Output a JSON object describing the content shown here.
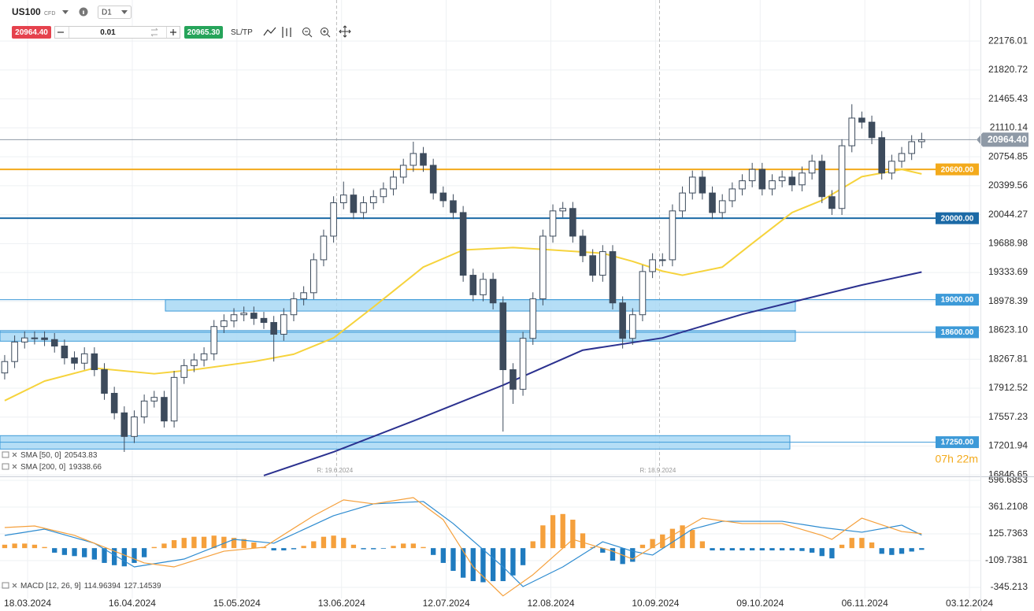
{
  "toolbar": {
    "symbol": "US100",
    "instrument_type": "CFD",
    "timeframe": "D1",
    "sell_price": "20964.40",
    "volume": "0.01",
    "buy_price": "20965.30",
    "sl_tp": "SL/TP"
  },
  "chart_data": [
    {
      "type": "candlestick",
      "x": [
        0,
        1,
        2,
        3,
        4,
        5,
        6,
        7,
        8,
        9,
        10,
        11,
        12,
        13,
        14,
        15,
        16,
        17,
        18,
        19,
        20,
        21,
        22,
        23,
        24,
        25,
        26,
        27,
        28,
        29,
        30,
        31,
        32,
        33,
        34,
        35,
        36,
        37,
        38,
        39,
        40,
        41,
        42,
        43,
        44,
        45,
        46,
        47,
        48,
        49,
        50,
        51,
        52,
        53,
        54,
        55,
        56,
        57,
        58,
        59,
        60,
        61,
        62,
        63,
        64,
        65,
        66,
        67,
        68,
        69,
        70,
        71,
        72,
        73,
        74,
        75,
        76,
        77,
        78,
        79,
        80,
        81,
        82,
        83,
        84,
        85,
        86,
        87,
        88,
        89,
        90,
        91,
        92
      ],
      "open": [
        18100,
        18240,
        18480,
        18530,
        18530,
        18510,
        18430,
        18285,
        18220,
        18335,
        18140,
        17850,
        17610,
        17320,
        17560,
        17755,
        17800,
        17510,
        18045,
        18190,
        18260,
        18335,
        18670,
        18740,
        18815,
        18835,
        18770,
        18720,
        18575,
        18815,
        19010,
        19085,
        19490,
        19780,
        20190,
        20285,
        20070,
        20190,
        20265,
        20360,
        20505,
        20650,
        20795,
        20650,
        20310,
        20215,
        20070,
        19300,
        19060,
        19250,
        18960,
        18140,
        17900,
        18525,
        19010,
        19780,
        20090,
        20120,
        19780,
        19540,
        19300,
        19590,
        18960,
        18525,
        18815,
        19345,
        19490,
        19490,
        20090,
        20310,
        20505,
        20310,
        20070,
        20215,
        20360,
        20460,
        20600,
        20360,
        20460,
        20505,
        20410,
        20555,
        20700,
        20265,
        20120,
        20890,
        21230,
        21180,
        20990,
        20555,
        20700,
        20795,
        20940
      ],
      "high": [
        18320,
        18560,
        18610,
        18610,
        18610,
        18590,
        18510,
        18365,
        18415,
        18415,
        18220,
        17930,
        17690,
        17640,
        17835,
        17880,
        17880,
        18125,
        18270,
        18340,
        18415,
        18750,
        18820,
        18895,
        18915,
        18915,
        18850,
        18800,
        18895,
        19090,
        19165,
        19570,
        19860,
        20270,
        20450,
        20365,
        20270,
        20345,
        20440,
        20585,
        20730,
        20940,
        20875,
        20730,
        20390,
        20295,
        20150,
        19380,
        19330,
        19330,
        19040,
        18220,
        18605,
        19090,
        19860,
        20170,
        20200,
        20200,
        19860,
        19620,
        19670,
        19670,
        19040,
        18895,
        19425,
        19570,
        19570,
        20170,
        20390,
        20585,
        20585,
        20390,
        20295,
        20440,
        20540,
        20680,
        20680,
        20540,
        20585,
        20585,
        20635,
        20780,
        20780,
        20345,
        20970,
        21400,
        21310,
        21260,
        21070,
        20780,
        20875,
        21020,
        21050
      ],
      "low": [
        18020,
        18160,
        18400,
        18450,
        18430,
        18350,
        18205,
        18140,
        18140,
        18060,
        17770,
        17530,
        17130,
        17240,
        17480,
        17675,
        17430,
        17430,
        17965,
        18110,
        18180,
        18255,
        18590,
        18660,
        18735,
        18690,
        18640,
        18240,
        18495,
        18735,
        18930,
        19005,
        19410,
        19700,
        20110,
        19990,
        19990,
        20110,
        20185,
        20280,
        20425,
        20570,
        20570,
        20230,
        20135,
        19990,
        19220,
        18980,
        18980,
        18880,
        17380,
        17720,
        17820,
        18445,
        18930,
        19700,
        20010,
        19700,
        19460,
        19220,
        19220,
        18880,
        18400,
        18445,
        18735,
        19265,
        19410,
        19410,
        20010,
        20230,
        20230,
        19990,
        19990,
        20135,
        20280,
        20380,
        20280,
        20280,
        20380,
        20330,
        20330,
        20475,
        20185,
        20040,
        20040,
        20810,
        21100,
        20910,
        20475,
        20475,
        20620,
        20715,
        20860
      ],
      "close": [
        18240,
        18480,
        18530,
        18530,
        18510,
        18430,
        18285,
        18220,
        18335,
        18140,
        17850,
        17610,
        17320,
        17560,
        17755,
        17800,
        17510,
        18045,
        18190,
        18260,
        18335,
        18670,
        18740,
        18815,
        18835,
        18770,
        18720,
        18575,
        18815,
        19010,
        19085,
        19490,
        19780,
        20190,
        20285,
        20070,
        20190,
        20265,
        20360,
        20505,
        20650,
        20795,
        20650,
        20310,
        20215,
        20070,
        19300,
        19060,
        19250,
        18960,
        18140,
        17900,
        18525,
        19010,
        19780,
        20090,
        20120,
        19780,
        19540,
        19300,
        19590,
        18960,
        18525,
        18815,
        19345,
        19490,
        19490,
        20090,
        20310,
        20505,
        20310,
        20070,
        20215,
        20360,
        20460,
        20600,
        20360,
        20460,
        20505,
        20410,
        20555,
        20700,
        20265,
        20120,
        20890,
        21230,
        21180,
        20990,
        20555,
        20700,
        20795,
        20940,
        20964.4
      ],
      "up_color": "#ffffff",
      "down_color": "#3d4b5c",
      "series": [
        {
          "name": "SMA [50, 0]",
          "last_value": 20543.83,
          "color": "#f6d33c",
          "x": [
            0,
            4,
            9,
            15,
            19,
            25,
            29,
            33,
            37,
            42,
            46,
            51,
            55,
            60,
            63,
            66,
            68,
            72,
            75,
            79,
            82,
            86,
            90,
            92
          ],
          "values": [
            17760,
            18000,
            18160,
            18090,
            18140,
            18240,
            18330,
            18530,
            18910,
            19400,
            19610,
            19640,
            19610,
            19570,
            19470,
            19350,
            19300,
            19400,
            19690,
            20070,
            20220,
            20510,
            20600,
            20544
          ]
        },
        {
          "name": "SMA [200, 0]",
          "last_value": 19338.66,
          "color": "#2b318f",
          "x": [
            26,
            33,
            41,
            50,
            58,
            66,
            74,
            82,
            86,
            92
          ],
          "values": [
            16840,
            17130,
            17510,
            17950,
            18380,
            18530,
            18820,
            19060,
            19180,
            19339
          ]
        }
      ],
      "levels": [
        {
          "value": 20600,
          "label": "20600.00",
          "color": "#f3aa1c"
        },
        {
          "value": 20000,
          "label": "20000.00",
          "color": "#1c6aa6"
        },
        {
          "value": 19000,
          "label": "19000.00",
          "color": "#3d9ad8"
        },
        {
          "value": 18600,
          "label": "18600.00",
          "color": "#3d9ad8"
        },
        {
          "value": 17250,
          "label": "17250.00",
          "color": "#3d9ad8"
        }
      ],
      "zones": [
        {
          "lower": 18860,
          "upper": 19000
        },
        {
          "lower": 18490,
          "upper": 18620
        },
        {
          "lower": 17165,
          "upper": 17330
        }
      ],
      "current_price": {
        "value": 20964.4,
        "label": "20964.40"
      },
      "markers": [
        {
          "x": 33.3,
          "label": "R: 19.6.2024"
        },
        {
          "x": 65.7,
          "label": "R: 18.9.2024"
        }
      ],
      "countdown": "07h 22m",
      "xlim": [
        -0.47,
        97.9
      ],
      "ylim": [
        16830,
        22680
      ],
      "yticks": [
        22176.01,
        21820.72,
        21465.43,
        21110.14,
        20754.85,
        20399.56,
        20044.27,
        19688.98,
        19333.69,
        18978.39,
        {
          "value": 18623.1,
          "label": "18623.10"
        },
        18267.81,
        17912.52,
        17557.23,
        17201.94,
        16846.65
      ],
      "xticks": [
        {
          "value": 2.3,
          "label": "18.03.2024"
        },
        {
          "value": 12.8,
          "label": "16.04.2024"
        },
        {
          "value": 23.3,
          "label": "15.05.2024"
        },
        {
          "value": 33.8,
          "label": "13.06.2024"
        },
        {
          "value": 44.3,
          "label": "12.07.2024"
        },
        {
          "value": 54.8,
          "label": "12.08.2024"
        },
        {
          "value": 65.3,
          "label": "10.09.2024"
        },
        {
          "value": 75.8,
          "label": "09.10.2024"
        },
        {
          "value": 86.3,
          "label": "06.11.2024"
        },
        {
          "value": 96.8,
          "label": "03.12.2024"
        }
      ],
      "grid": true
    },
    {
      "type": "macd",
      "legend": {
        "name": "MACD [12, 26, 9]",
        "values": [
          114.96394,
          127.14539
        ]
      },
      "histogram": {
        "up_color": "#f5a03c",
        "down_color": "#1f7bbf",
        "values": [
          30,
          40,
          40,
          30,
          10,
          -40,
          -60,
          -70,
          -80,
          -100,
          -130,
          -150,
          -160,
          -130,
          -80,
          10,
          40,
          70,
          90,
          100,
          100,
          110,
          100,
          90,
          80,
          50,
          10,
          -20,
          -20,
          -10,
          20,
          60,
          100,
          110,
          90,
          30,
          -10,
          -10,
          -5,
          20,
          40,
          40,
          10,
          -60,
          -130,
          -200,
          -260,
          -290,
          -300,
          -290,
          -290,
          -240,
          -150,
          60,
          200,
          290,
          300,
          250,
          130,
          10,
          -40,
          -110,
          -140,
          -120,
          30,
          80,
          120,
          170,
          200,
          160,
          60,
          -20,
          -20,
          -20,
          -20,
          -20,
          -20,
          -20,
          -20,
          -20,
          -25,
          -40,
          -70,
          -90,
          30,
          90,
          90,
          50,
          -50,
          -60,
          -50,
          -30,
          -15
        ]
      },
      "lines": [
        {
          "color": "#2d8bd0",
          "x": [
            0,
            4,
            9,
            13,
            18,
            23,
            27,
            33,
            37,
            42,
            45,
            50,
            52,
            56,
            60,
            63,
            65,
            69,
            72,
            78,
            82,
            86,
            90,
            92
          ],
          "values": [
            112,
            167,
            43,
            -165,
            -96,
            77,
            43,
            285,
            389,
            410,
            216,
            -165,
            -338,
            -165,
            56,
            -27,
            -61,
            167,
            236,
            236,
            181,
            140,
            202,
            114.96394
          ]
        },
        {
          "color": "#f5a03c",
          "x": [
            0,
            3,
            7,
            14,
            17,
            22,
            26,
            31,
            34,
            37,
            41,
            44,
            47,
            50,
            53,
            57,
            61,
            63,
            67,
            70,
            74,
            78,
            82,
            83,
            86,
            90,
            92
          ],
          "values": [
            181,
            195,
            112,
            -130,
            -165,
            -27,
            8,
            285,
            424,
            389,
            444,
            250,
            -165,
            -420,
            -234,
            77,
            -27,
            -96,
            112,
            264,
            216,
            216,
            112,
            77,
            264,
            146,
            127.14539
          ]
        }
      ],
      "ylim": [
        -442,
        624
      ],
      "yticks": [
        596.6853,
        361.2108,
        125.7363,
        -109.7381,
        -345.213
      ],
      "grid": true
    }
  ]
}
